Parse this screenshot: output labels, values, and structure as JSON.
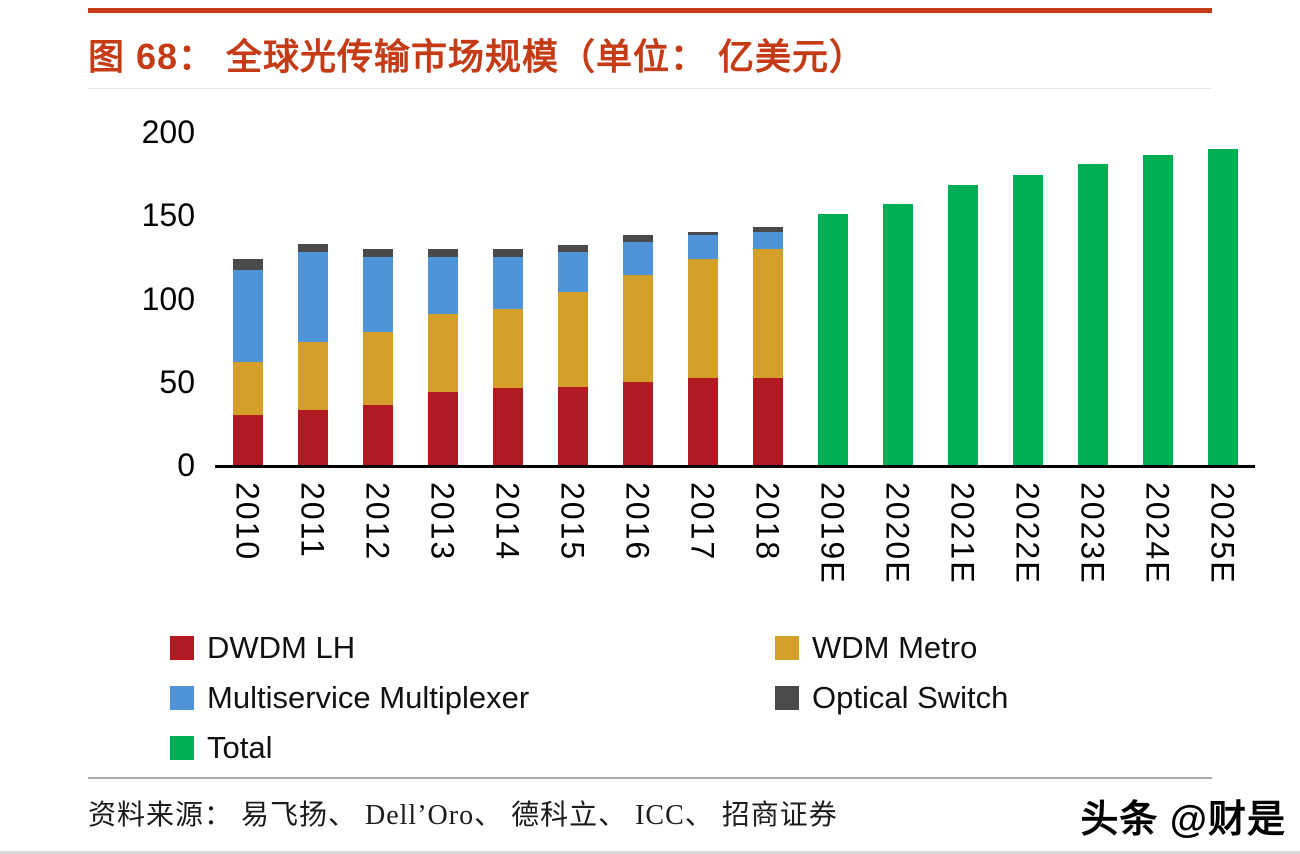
{
  "figure": {
    "title": "图 68：  全球光传输市场规模（单位： 亿美元）",
    "source_label": "资料来源：  易飞扬、 Dell’Oro、 德科立、 ICC、 招商证券",
    "watermark": "头条 @财是"
  },
  "colors": {
    "accent": "#c43b16",
    "dwdm_lh": "#b11a23",
    "wdm_metro": "#d4a029",
    "multiservice_multiplexer": "#4f93d9",
    "optical_switch": "#4a4a4a",
    "total": "#00ae54",
    "axis": "#000000"
  },
  "chart_data": {
    "type": "bar",
    "stacked": true,
    "title": "全球光传输市场规模（单位：亿美元）",
    "xlabel": "",
    "ylabel": "",
    "ylim": [
      0,
      200
    ],
    "yticks": [
      0,
      50,
      100,
      150,
      200
    ],
    "grid": false,
    "legend_position": "bottom",
    "categories": [
      "2010",
      "2011",
      "2012",
      "2013",
      "2014",
      "2015",
      "2016",
      "2017",
      "2018",
      "2019E",
      "2020E",
      "2021E",
      "2022E",
      "2023E",
      "2024E",
      "2025E"
    ],
    "series": [
      {
        "name": "DWDM LH",
        "color": "#b11a23",
        "values": [
          30,
          33,
          36,
          44,
          46,
          47,
          50,
          52,
          52,
          null,
          null,
          null,
          null,
          null,
          null,
          null
        ]
      },
      {
        "name": "WDM Metro",
        "color": "#d4a029",
        "values": [
          32,
          41,
          44,
          47,
          48,
          57,
          64,
          72,
          78,
          null,
          null,
          null,
          null,
          null,
          null,
          null
        ]
      },
      {
        "name": "Multiservice Multiplexer",
        "color": "#4f93d9",
        "values": [
          55,
          54,
          45,
          34,
          31,
          24,
          20,
          14,
          10,
          null,
          null,
          null,
          null,
          null,
          null,
          null
        ]
      },
      {
        "name": "Optical Switch",
        "color": "#4a4a4a",
        "values": [
          7,
          5,
          5,
          5,
          5,
          4,
          4,
          2,
          3,
          null,
          null,
          null,
          null,
          null,
          null,
          null
        ]
      },
      {
        "name": "Total",
        "color": "#00ae54",
        "values": [
          null,
          null,
          null,
          null,
          null,
          null,
          null,
          null,
          null,
          151,
          157,
          168,
          174,
          181,
          186,
          190
        ]
      }
    ]
  },
  "legend": {
    "items": [
      {
        "label": "DWDM LH",
        "color": "#b11a23"
      },
      {
        "label": "WDM Metro",
        "color": "#d4a029"
      },
      {
        "label": "Multiservice Multiplexer",
        "color": "#4f93d9"
      },
      {
        "label": "Optical Switch",
        "color": "#4a4a4a"
      },
      {
        "label": "Total",
        "color": "#00ae54"
      }
    ]
  }
}
